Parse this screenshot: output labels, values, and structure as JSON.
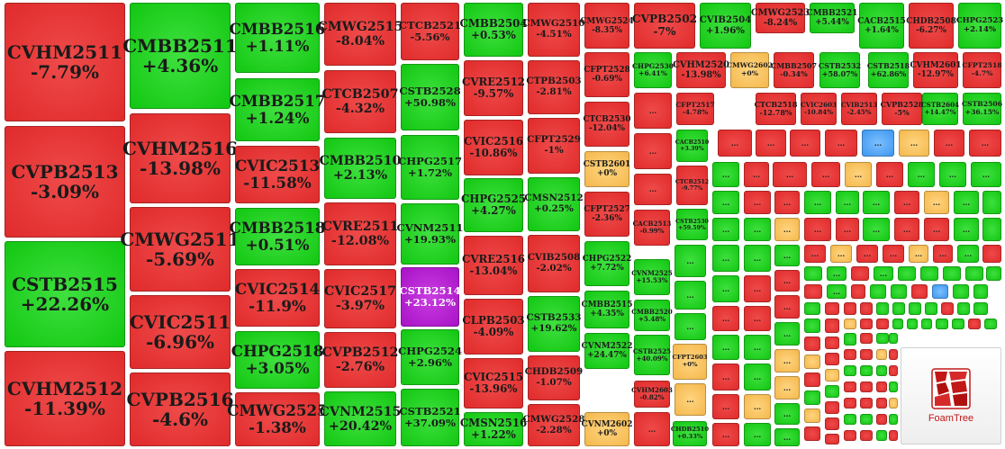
{
  "chart_data": {
    "type": "treemap",
    "colors": {
      "up": "#15c815",
      "down": "#e23030",
      "zero": "#f6bf5c",
      "ceiling": "#b020d0",
      "floor": "#49a5f5"
    },
    "collapsed_label": "...",
    "big": [
      {
        "name": "CVHM2511",
        "change": "-7.79%"
      },
      {
        "name": "CVPB2513",
        "change": "-3.09%"
      },
      {
        "name": "CSTB2515",
        "change": "+22.26%"
      },
      {
        "name": "CVHM2512",
        "change": "-11.39%"
      },
      {
        "name": "CMBB2511",
        "change": "+4.36%"
      },
      {
        "name": "CVHM2516",
        "change": "-13.98%"
      },
      {
        "name": "CMWG2511",
        "change": "-5.69%"
      },
      {
        "name": "CVIC2511",
        "change": "-6.96%"
      },
      {
        "name": "CVPB2516",
        "change": "-4.6%"
      },
      {
        "name": "CMBB2516",
        "change": "+1.11%"
      },
      {
        "name": "CMBB2517",
        "change": "+1.24%"
      },
      {
        "name": "CVIC2513",
        "change": "-11.58%"
      },
      {
        "name": "CMBB2518",
        "change": "+0.51%"
      },
      {
        "name": "CVIC2514",
        "change": "-11.9%"
      },
      {
        "name": "CHPG2518",
        "change": "+3.05%"
      },
      {
        "name": "CMWG2525",
        "change": "-1.38%"
      },
      {
        "name": "CMWG2515",
        "change": "-8.04%"
      },
      {
        "name": "CTCB2507",
        "change": "-4.32%"
      },
      {
        "name": "CMBB2510",
        "change": "+2.13%"
      },
      {
        "name": "CVRE2511",
        "change": "-12.08%"
      },
      {
        "name": "CVIC2517",
        "change": "-3.97%"
      },
      {
        "name": "CVPB2512",
        "change": "-2.76%"
      },
      {
        "name": "CVNM2515",
        "change": "+20.42%"
      },
      {
        "name": "CTCB2521",
        "change": "-5.56%"
      },
      {
        "name": "CSTB2528",
        "change": "+50.98%"
      },
      {
        "name": "CHPG2517",
        "change": "+1.72%"
      },
      {
        "name": "CVNM2511",
        "change": "+19.93%"
      },
      {
        "name": "CSTB2514",
        "change": "+23.12%"
      },
      {
        "name": "CHPG2524",
        "change": "+2.96%"
      },
      {
        "name": "CSTB2521",
        "change": "+37.09%"
      },
      {
        "name": "CMBB2504",
        "change": "+0.53%"
      },
      {
        "name": "CVRE2512",
        "change": "-9.57%"
      },
      {
        "name": "CVIC2516",
        "change": "-10.86%"
      },
      {
        "name": "CHPG2525",
        "change": "+4.27%"
      },
      {
        "name": "CVRE2516",
        "change": "-13.04%"
      },
      {
        "name": "CLPB2503",
        "change": "-4.09%"
      },
      {
        "name": "CVIC2515",
        "change": "-13.96%"
      },
      {
        "name": "CMSN2516",
        "change": "+1.22%"
      },
      {
        "name": "CMWG2510",
        "change": "-4.51%"
      },
      {
        "name": "CTPB2503",
        "change": "-2.81%"
      },
      {
        "name": "CFPT2529",
        "change": "-1%"
      },
      {
        "name": "CMSN2512",
        "change": "+0.25%"
      },
      {
        "name": "CVIB2508",
        "change": "-2.02%"
      },
      {
        "name": "CSTB2533",
        "change": "+19.62%"
      },
      {
        "name": "CHDB2509",
        "change": "-1.07%"
      },
      {
        "name": "CMWG2528",
        "change": "-2.28%"
      }
    ],
    "medium": [
      {
        "name": "CMWG2524",
        "change": "-8.35%"
      },
      {
        "name": "CVPB2502",
        "change": "-7%"
      },
      {
        "name": "CVIB2504",
        "change": "+1.96%"
      },
      {
        "name": "CMWG2523",
        "change": "-8.24%"
      },
      {
        "name": "CMBB2521",
        "change": "+5.44%"
      },
      {
        "name": "CACB2515",
        "change": "+1.64%"
      },
      {
        "name": "CHDB2508",
        "change": "-6.27%"
      },
      {
        "name": "CHPG2523",
        "change": "+2.14%"
      },
      {
        "name": "CFPT2528",
        "change": "-0.69%"
      },
      {
        "name": "CHPG2530",
        "change": "+6.41%"
      },
      {
        "name": "CVHM2520",
        "change": "-13.98%"
      },
      {
        "name": "CMWG2602",
        "change": "+0%"
      },
      {
        "name": "CMBB2507",
        "change": "-0.34%"
      },
      {
        "name": "CSTB2532",
        "change": "+58.07%"
      },
      {
        "name": "CSTB2518",
        "change": "+62.86%"
      },
      {
        "name": "CVHM2601",
        "change": "-12.97%"
      },
      {
        "name": "CFPT2518",
        "change": "-4.7%"
      },
      {
        "name": "CTCB2530",
        "change": "-12.04%"
      },
      {
        "name": "CFPT2517",
        "change": "-4.78%"
      },
      {
        "name": "CTCB2518",
        "change": "-12.78%"
      },
      {
        "name": "CVIC2603",
        "change": "-10.84%"
      },
      {
        "name": "CVIB2513",
        "change": "-2.45%"
      },
      {
        "name": "CVPB2528",
        "change": "-5%"
      },
      {
        "name": "CSTB2604",
        "change": "+14.47%"
      },
      {
        "name": "CSTB2506",
        "change": "+36.15%"
      },
      {
        "name": "CACB2510",
        "change": "+3.39%"
      },
      {
        "name": "CSTB2601",
        "change": "+0%"
      },
      {
        "name": "CTCB2512",
        "change": "-9.77%"
      },
      {
        "name": "CFPT2527",
        "change": "-2.36%"
      },
      {
        "name": "CSTB2530",
        "change": "+59.59%"
      },
      {
        "name": "CACB2513",
        "change": "-0.99%"
      },
      {
        "name": "CHPG2522",
        "change": "+7.72%"
      },
      {
        "name": "CVNM2525",
        "change": "+15.53%"
      },
      {
        "name": "CMBB2515",
        "change": "+4.35%"
      },
      {
        "name": "CMBB2520",
        "change": "+5.48%"
      },
      {
        "name": "CVNM2522",
        "change": "+24.47%"
      },
      {
        "name": "CSTB2525",
        "change": "+40.09%"
      },
      {
        "name": "CVHM2603",
        "change": "-0.82%"
      },
      {
        "name": "CFPT2603",
        "change": "+0%"
      },
      {
        "name": "CVNM2602",
        "change": "+0%"
      },
      {
        "name": "CHDB2510",
        "change": "+0.33%"
      }
    ],
    "logo_text": "FoamTree"
  }
}
